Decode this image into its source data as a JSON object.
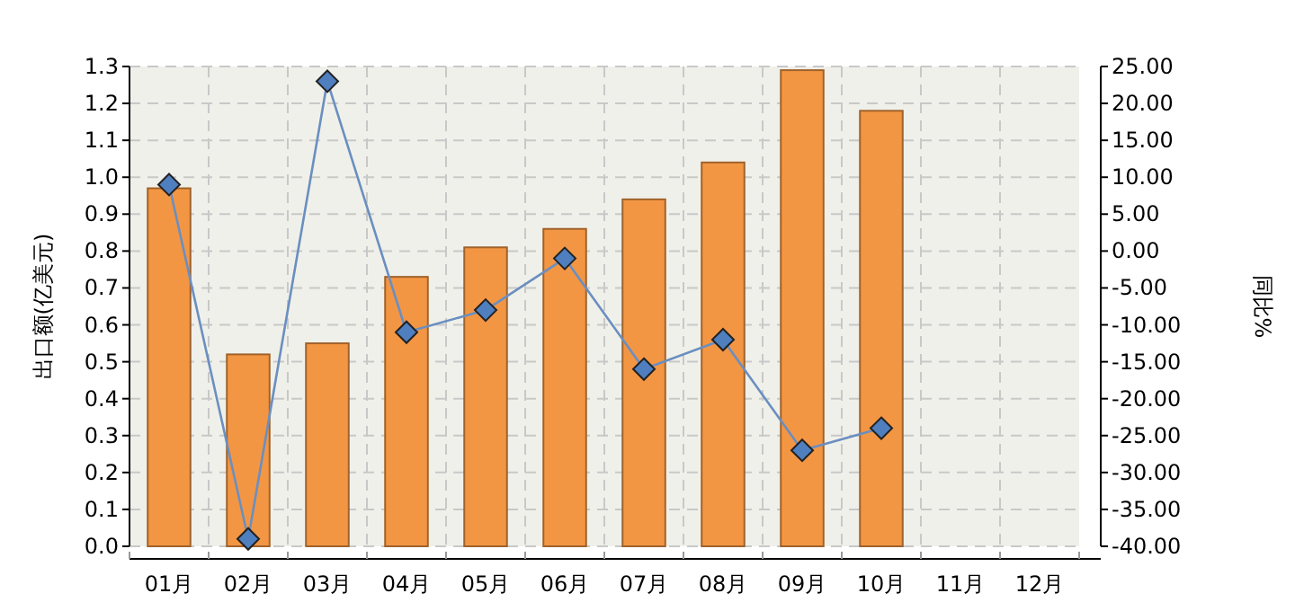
{
  "chart_data": {
    "type": "bar",
    "ylabel": "出口额(亿美元)",
    "y2label": "同比%",
    "categories": [
      "01月",
      "02月",
      "03月",
      "04月",
      "05月",
      "06月",
      "07月",
      "08月",
      "09月",
      "10月",
      "11月",
      "12月"
    ],
    "series": [
      {
        "color": "#f39644",
        "values": [
          0.97,
          0.52,
          0.55,
          0.73,
          0.81,
          0.86,
          0.94,
          1.04,
          1.29,
          1.18,
          null,
          null
        ]
      },
      {
        "type": "line",
        "axis": "y2",
        "color": "#6a8fc0",
        "marker": "diamond",
        "values": [
          9,
          -39,
          23,
          -11,
          -8,
          -1,
          -16,
          -12,
          -27,
          -24,
          null,
          null
        ]
      }
    ],
    "ylim": [
      0,
      1.3
    ],
    "yticks": [
      {
        "value": 0,
        "label": "0.0"
      },
      {
        "value": 0.1,
        "label": "0.1"
      },
      {
        "value": 0.2,
        "label": "0.2"
      },
      {
        "value": 0.3,
        "label": "0.3"
      },
      {
        "value": 0.4,
        "label": "0.4"
      },
      {
        "value": 0.5,
        "label": "0.5"
      },
      {
        "value": 0.6,
        "label": "0.6"
      },
      {
        "value": 0.7,
        "label": "0.7"
      },
      {
        "value": 0.8,
        "label": "0.8"
      },
      {
        "value": 0.9,
        "label": "0.9"
      },
      {
        "value": 1,
        "label": "1.0"
      },
      {
        "value": 1.1,
        "label": "1.1"
      },
      {
        "value": 1.2,
        "label": "1.2"
      },
      {
        "value": 1.3,
        "label": "1.3"
      }
    ],
    "y2lim": [
      -40,
      25
    ],
    "y2ticks": [
      {
        "value": 25,
        "label": "25.00"
      },
      {
        "value": 20,
        "label": "20.00"
      },
      {
        "value": 15,
        "label": "15.00"
      },
      {
        "value": 10,
        "label": "10.00"
      },
      {
        "value": 5,
        "label": "5.00"
      },
      {
        "value": 0,
        "label": "0.00"
      },
      {
        "value": -5,
        "label": "-5.00"
      },
      {
        "value": -10,
        "label": "-10.00"
      },
      {
        "value": -15,
        "label": "-15.00"
      },
      {
        "value": -20,
        "label": "-20.00"
      },
      {
        "value": -25,
        "label": "-25.00"
      },
      {
        "value": -30,
        "label": "-30.00"
      },
      {
        "value": -35,
        "label": "-35.00"
      },
      {
        "value": -40,
        "label": "-40.00"
      }
    ],
    "grid": true
  }
}
